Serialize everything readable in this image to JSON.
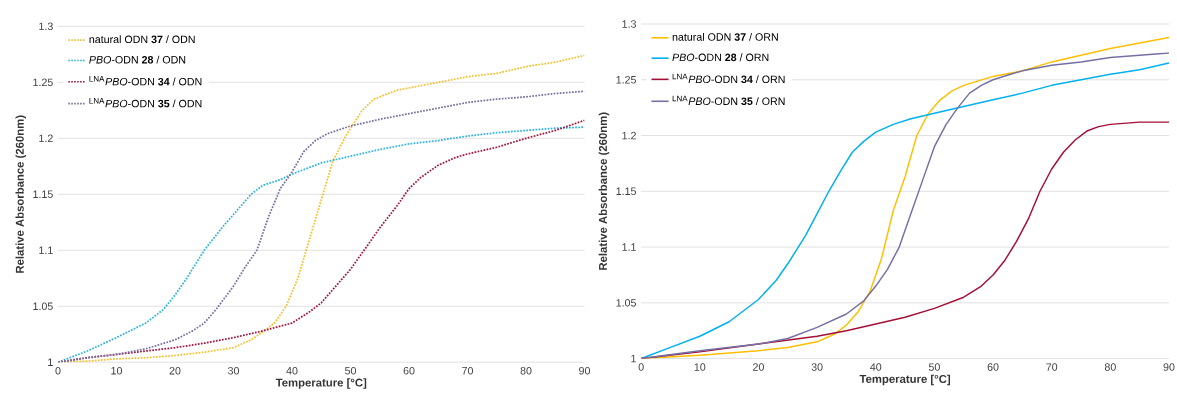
{
  "chart_data": [
    {
      "type": "line",
      "xlabel": "Temperature [°C]",
      "ylabel": "Relative Absorbance  (260nm)",
      "xlim": [
        0,
        90
      ],
      "xticks": [
        0,
        10,
        20,
        30,
        40,
        50,
        60,
        70,
        80,
        90
      ],
      "ylim": [
        1,
        1.3
      ],
      "yticks": [
        1,
        1.05,
        1.1,
        1.15,
        1.2,
        1.25,
        1.3
      ],
      "grid": "y",
      "legend": "top left",
      "marker": "none",
      "line_style": "dotted",
      "series": [
        {
          "name": "natural ODN **37** / ODN",
          "color": "#f5c02c",
          "x": [
            0,
            5,
            10,
            15,
            20,
            25,
            30,
            33,
            35,
            37,
            39,
            41,
            43,
            45,
            47,
            49,
            50,
            52,
            54,
            58,
            62,
            65,
            70,
            75,
            80,
            85,
            90
          ],
          "values": [
            1.0,
            1.001,
            1.003,
            1.004,
            1.006,
            1.009,
            1.013,
            1.02,
            1.027,
            1.035,
            1.05,
            1.075,
            1.11,
            1.145,
            1.18,
            1.2,
            1.209,
            1.225,
            1.235,
            1.243,
            1.247,
            1.25,
            1.255,
            1.258,
            1.264,
            1.268,
            1.274
          ]
        },
        {
          "name": "*PBO*-ODN **28** / ODN",
          "color": "#2bb4e0",
          "x": [
            0,
            5,
            10,
            15,
            18,
            20,
            22,
            25,
            28,
            30,
            33,
            35,
            38,
            40,
            45,
            50,
            55,
            60,
            65,
            70,
            75,
            80,
            85,
            90
          ],
          "values": [
            1.0,
            1.01,
            1.022,
            1.035,
            1.047,
            1.06,
            1.075,
            1.1,
            1.12,
            1.132,
            1.15,
            1.158,
            1.163,
            1.168,
            1.178,
            1.184,
            1.19,
            1.195,
            1.198,
            1.202,
            1.205,
            1.207,
            1.209,
            1.21
          ]
        },
        {
          "name": "$^{LNA}$*PBO*-ODN **34** / ODN",
          "color": "#a3153e",
          "x": [
            0,
            5,
            10,
            15,
            20,
            25,
            30,
            35,
            40,
            43,
            45,
            47,
            50,
            53,
            55,
            58,
            60,
            62,
            65,
            68,
            70,
            75,
            80,
            85,
            90
          ],
          "values": [
            1.0,
            1.004,
            1.007,
            1.01,
            1.013,
            1.017,
            1.022,
            1.028,
            1.035,
            1.045,
            1.053,
            1.065,
            1.083,
            1.105,
            1.12,
            1.14,
            1.155,
            1.165,
            1.176,
            1.183,
            1.186,
            1.192,
            1.2,
            1.207,
            1.216
          ]
        },
        {
          "name": "$^{LNA}$*PBO*-ODN **35** / ODN",
          "color": "#7a70a0",
          "x": [
            0,
            5,
            10,
            15,
            20,
            23,
            25,
            27,
            30,
            32,
            34,
            36,
            38,
            40,
            42,
            44,
            46,
            50,
            55,
            60,
            65,
            70,
            75,
            80,
            85,
            90
          ],
          "values": [
            1.0,
            1.004,
            1.007,
            1.012,
            1.02,
            1.028,
            1.035,
            1.047,
            1.068,
            1.085,
            1.1,
            1.13,
            1.155,
            1.17,
            1.188,
            1.198,
            1.204,
            1.211,
            1.217,
            1.222,
            1.227,
            1.232,
            1.235,
            1.237,
            1.24,
            1.242
          ]
        }
      ]
    },
    {
      "type": "line",
      "xlabel": "Temperature [°C]",
      "ylabel": "Relative Absorbance  (260nm)",
      "xlim": [
        0,
        90
      ],
      "xticks": [
        0,
        10,
        20,
        30,
        40,
        50,
        60,
        70,
        80,
        90
      ],
      "ylim": [
        1,
        1.3
      ],
      "yticks": [
        1,
        1.05,
        1.1,
        1.15,
        1.2,
        1.25,
        1.3
      ],
      "grid": "y",
      "legend": "top left",
      "marker": "none",
      "line_style": "solid",
      "series": [
        {
          "name": "natural ODN **37** / ORN",
          "color": "#ffbf00",
          "x": [
            0,
            10,
            20,
            25,
            30,
            33,
            35,
            37,
            39,
            41,
            43,
            45,
            47,
            49,
            51,
            53,
            55,
            60,
            65,
            70,
            75,
            80,
            85,
            90
          ],
          "values": [
            1.0,
            1.003,
            1.007,
            1.01,
            1.015,
            1.022,
            1.03,
            1.042,
            1.06,
            1.09,
            1.133,
            1.163,
            1.2,
            1.22,
            1.232,
            1.24,
            1.245,
            1.253,
            1.258,
            1.266,
            1.272,
            1.278,
            1.283,
            1.288
          ]
        },
        {
          "name": "*PBO*-ODN **28** / ORN",
          "color": "#00b0f0",
          "x": [
            0,
            5,
            10,
            15,
            20,
            23,
            25,
            28,
            30,
            32,
            34,
            36,
            38,
            40,
            43,
            46,
            50,
            55,
            60,
            65,
            70,
            75,
            80,
            85,
            90
          ],
          "values": [
            1.0,
            1.01,
            1.02,
            1.033,
            1.053,
            1.07,
            1.085,
            1.11,
            1.13,
            1.15,
            1.168,
            1.185,
            1.195,
            1.203,
            1.21,
            1.215,
            1.22,
            1.226,
            1.232,
            1.238,
            1.245,
            1.25,
            1.255,
            1.259,
            1.265
          ]
        },
        {
          "name": "$^{LNA}$*PBO*-ODN **34** / ORN",
          "color": "#a50f36",
          "x": [
            0,
            10,
            20,
            30,
            35,
            40,
            45,
            50,
            55,
            58,
            60,
            62,
            64,
            66,
            68,
            70,
            72,
            74,
            76,
            78,
            80,
            85,
            90
          ],
          "values": [
            1.0,
            1.006,
            1.013,
            1.02,
            1.025,
            1.031,
            1.037,
            1.045,
            1.055,
            1.065,
            1.075,
            1.088,
            1.105,
            1.125,
            1.15,
            1.17,
            1.185,
            1.196,
            1.204,
            1.208,
            1.21,
            1.212,
            1.212
          ]
        },
        {
          "name": "$^{LNA}$*PBO*-ODN **35** / ORN",
          "color": "#7470a4",
          "x": [
            0,
            10,
            20,
            25,
            30,
            35,
            38,
            40,
            42,
            44,
            46,
            48,
            50,
            52,
            54,
            56,
            58,
            60,
            63,
            65,
            70,
            75,
            80,
            85,
            90
          ],
          "values": [
            1.0,
            1.007,
            1.013,
            1.018,
            1.028,
            1.04,
            1.052,
            1.065,
            1.08,
            1.1,
            1.13,
            1.16,
            1.19,
            1.21,
            1.225,
            1.238,
            1.245,
            1.25,
            1.255,
            1.258,
            1.263,
            1.266,
            1.27,
            1.272,
            1.274
          ]
        }
      ]
    }
  ]
}
